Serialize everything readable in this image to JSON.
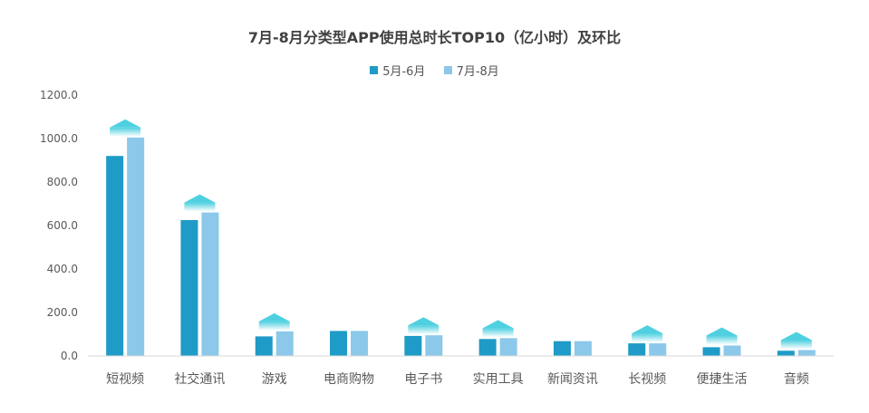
{
  "chart_data": {
    "type": "bar",
    "title": "7月-8月分类型APP使用总时长TOP10（亿小时）及环比",
    "categories": [
      "短视频",
      "社交通讯",
      "游戏",
      "电商购物",
      "电子书",
      "实用工具",
      "新闻资讯",
      "长视频",
      "便捷生活",
      "音频"
    ],
    "series": [
      {
        "name": "5月-6月",
        "values": [
          920,
          625,
          90,
          115,
          92,
          78,
          68,
          58,
          40,
          24
        ]
      },
      {
        "name": "7月-8月",
        "values": [
          1005,
          660,
          113,
          115,
          95,
          82,
          68,
          58,
          48,
          27
        ]
      }
    ],
    "up_arrows": [
      true,
      true,
      true,
      false,
      true,
      true,
      false,
      true,
      true,
      true
    ],
    "ylim": [
      0,
      1200
    ],
    "yticks": [
      "0.0",
      "200.0",
      "400.0",
      "600.0",
      "800.0",
      "1000.0",
      "1200.0"
    ],
    "grid": false,
    "legend_position": "top"
  },
  "colors": {
    "series_a": "#1f9bc7",
    "series_b": "#8cc8ea",
    "arrow": "#4fd0e0",
    "axis_text": "#595959",
    "axis_line": "#d9d9d9"
  }
}
